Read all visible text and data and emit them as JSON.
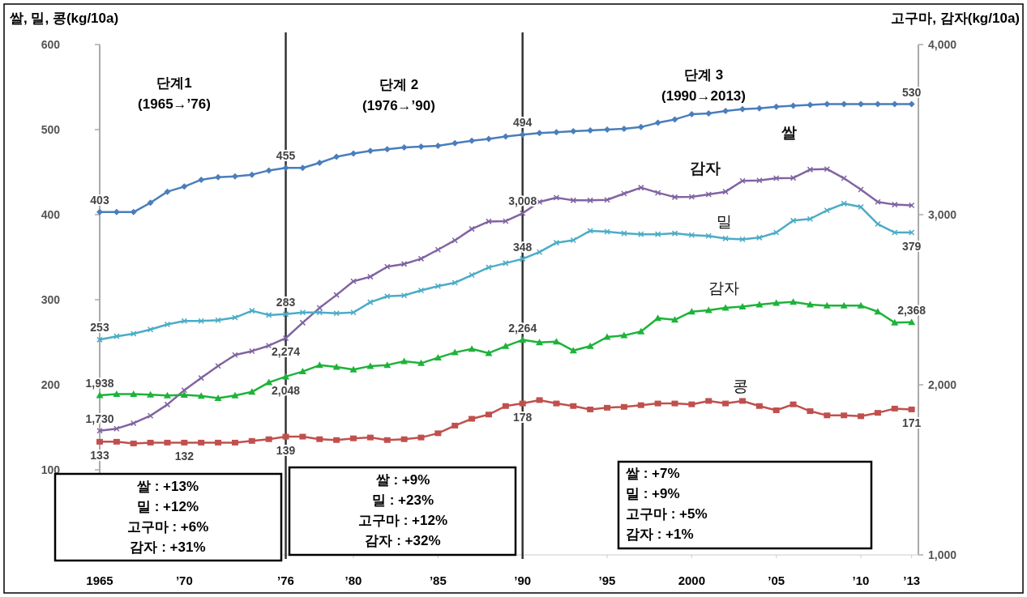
{
  "chart_data": {
    "type": "line",
    "ylabel": "쌀, 밀, 콩(kg/10a)",
    "y2label": "고구마, 감자(kg/10a)",
    "x": [
      1965,
      1966,
      1967,
      1968,
      1969,
      1970,
      1971,
      1972,
      1973,
      1974,
      1975,
      1976,
      1977,
      1978,
      1979,
      1980,
      1981,
      1982,
      1983,
      1984,
      1985,
      1986,
      1987,
      1988,
      1989,
      1990,
      1991,
      1992,
      1993,
      1994,
      1995,
      1996,
      1997,
      1998,
      1999,
      2000,
      2001,
      2002,
      2003,
      2004,
      2005,
      2006,
      2007,
      2008,
      2009,
      2010,
      2011,
      2012,
      2013
    ],
    "xlim": [
      1965,
      2013.4
    ],
    "xticks": [
      1965,
      {
        "value": 1970,
        "label": "’70"
      },
      {
        "value": 1976,
        "label": "’76"
      },
      {
        "value": 1980,
        "label": "’80"
      },
      {
        "value": 1985,
        "label": "’85"
      },
      {
        "value": 1990,
        "label": "’90"
      },
      {
        "value": 1995,
        "label": "’95"
      },
      2000,
      {
        "value": 2005,
        "label": "’05"
      },
      {
        "value": 2010,
        "label": "’10"
      },
      {
        "value": 2013,
        "label": "’13"
      }
    ],
    "ylim": [
      0,
      600
    ],
    "yticks": [
      100,
      200,
      300,
      400,
      500,
      600
    ],
    "y2lim": [
      1000,
      4000
    ],
    "y2ticks": [
      {
        "value": 1000,
        "label": "1,000"
      },
      {
        "value": 2000,
        "label": "2,000"
      },
      {
        "value": 3000,
        "label": "3,000"
      },
      {
        "value": 4000,
        "label": "4,000"
      }
    ],
    "series": [
      {
        "name": "쌀",
        "color": "#4a7ebb",
        "marker": "diamond",
        "values": [
          403,
          403,
          403,
          414,
          427,
          433,
          441,
          444,
          445,
          447,
          452,
          455,
          455,
          461,
          468,
          472,
          475,
          477,
          479,
          480,
          481,
          484,
          487,
          489,
          492,
          494,
          496,
          497,
          498,
          499,
          500,
          501,
          503,
          508,
          512,
          518,
          519,
          522,
          524,
          525,
          527,
          528,
          529,
          530,
          530,
          530,
          530,
          530,
          530
        ],
        "value_labels": [
          "403",
          null,
          null,
          null,
          null,
          null,
          null,
          null,
          null,
          null,
          null,
          "455",
          null,
          null,
          null,
          null,
          null,
          null,
          null,
          null,
          null,
          null,
          null,
          null,
          null,
          "494",
          null,
          null,
          null,
          null,
          null,
          null,
          null,
          null,
          null,
          null,
          null,
          null,
          null,
          null,
          null,
          null,
          null,
          null,
          null,
          null,
          null,
          null,
          "530"
        ]
      },
      {
        "name": "감자",
        "color": "#8064a2",
        "marker": "cross",
        "axis": "y2",
        "values": [
          1730,
          1742,
          1774,
          1818,
          1884,
          1968,
          2040,
          2111,
          2175,
          2198,
          2230,
          2274,
          2365,
          2452,
          2528,
          2608,
          2635,
          2694,
          2710,
          2741,
          2794,
          2849,
          2916,
          2960,
          2962,
          3008,
          3075,
          3100,
          3084,
          3084,
          3087,
          3124,
          3159,
          3129,
          3103,
          3105,
          3119,
          3135,
          3199,
          3201,
          3214,
          3216,
          3265,
          3268,
          3214,
          3148,
          3075,
          3059,
          3055
        ],
        "value_labels": [
          "1,730",
          null,
          null,
          null,
          null,
          null,
          null,
          null,
          null,
          null,
          null,
          "2,274",
          null,
          null,
          null,
          null,
          null,
          null,
          null,
          null,
          null,
          null,
          null,
          null,
          null,
          "3,008",
          null,
          null,
          null,
          null,
          null,
          null,
          null,
          null,
          null,
          null,
          null,
          null,
          null,
          null,
          null,
          null,
          null,
          null,
          null,
          null,
          null,
          null,
          null
        ]
      },
      {
        "name": "밀",
        "color": "#4bacc6",
        "marker": "cross",
        "values": [
          253,
          257,
          260,
          265,
          271,
          275,
          275,
          276,
          279,
          287,
          282,
          283,
          285,
          285,
          284,
          285,
          297,
          304,
          305,
          311,
          316,
          320,
          329,
          338,
          343,
          348,
          356,
          367,
          370,
          381,
          380,
          378,
          377,
          377,
          378,
          376,
          375,
          372,
          371,
          373,
          379,
          393,
          395,
          405,
          413,
          409,
          389,
          379,
          379
        ],
        "value_labels": [
          "253",
          null,
          null,
          null,
          null,
          null,
          null,
          null,
          null,
          null,
          null,
          "283",
          null,
          null,
          null,
          null,
          null,
          null,
          null,
          null,
          null,
          null,
          null,
          null,
          null,
          "348",
          null,
          null,
          null,
          null,
          null,
          null,
          null,
          null,
          null,
          null,
          null,
          null,
          null,
          null,
          null,
          null,
          null,
          null,
          null,
          null,
          null,
          null,
          "379"
        ]
      },
      {
        "name": "감자",
        "color": "#1db33a",
        "marker": "triangle",
        "axis": "y2",
        "values": [
          1938,
          1945,
          1945,
          1942,
          1937,
          1940,
          1935,
          1921,
          1937,
          1958,
          2014,
          2048,
          2078,
          2115,
          2105,
          2089,
          2110,
          2116,
          2138,
          2127,
          2159,
          2190,
          2211,
          2186,
          2227,
          2264,
          2249,
          2254,
          2201,
          2227,
          2281,
          2290,
          2313,
          2392,
          2382,
          2430,
          2438,
          2452,
          2460,
          2471,
          2481,
          2487,
          2471,
          2465,
          2465,
          2465,
          2430,
          2365,
          2368
        ],
        "value_labels": [
          "1,938",
          null,
          null,
          null,
          null,
          null,
          null,
          null,
          null,
          null,
          null,
          "2,048",
          null,
          null,
          null,
          null,
          null,
          null,
          null,
          null,
          null,
          null,
          null,
          null,
          null,
          "2,264",
          null,
          null,
          null,
          null,
          null,
          null,
          null,
          null,
          null,
          null,
          null,
          null,
          null,
          null,
          null,
          null,
          null,
          null,
          null,
          null,
          null,
          null,
          "2,368"
        ]
      },
      {
        "name": "콩",
        "color": "#c0504d",
        "marker": "square",
        "values": [
          133,
          133,
          131,
          132,
          132,
          132,
          132,
          132,
          132,
          134,
          136,
          139,
          139,
          136,
          135,
          137,
          138,
          135,
          136,
          138,
          143,
          152,
          160,
          165,
          175,
          178,
          182,
          178,
          175,
          171,
          173,
          174,
          176,
          178,
          178,
          177,
          181,
          178,
          181,
          175,
          170,
          177,
          169,
          164,
          164,
          163,
          167,
          172,
          171
        ],
        "value_labels": [
          "133",
          null,
          null,
          null,
          null,
          "132",
          null,
          null,
          null,
          null,
          null,
          "139",
          null,
          null,
          null,
          null,
          null,
          null,
          null,
          null,
          null,
          null,
          null,
          null,
          null,
          "178",
          null,
          null,
          null,
          null,
          null,
          null,
          null,
          null,
          null,
          null,
          null,
          null,
          null,
          null,
          null,
          null,
          null,
          null,
          null,
          null,
          null,
          null,
          "171"
        ]
      }
    ],
    "ref_lines": [
      {
        "axis": "x",
        "value": 1976,
        "color": "#333333"
      },
      {
        "axis": "x",
        "value": 1990,
        "color": "#333333"
      }
    ],
    "annotations": [
      "단계1\n(1965→’76)",
      "단계 2\n(1976→’90)",
      "단계 3\n(1990→2013)",
      "쌀 : +13%\n밀 : +12%\n고구마 : +6%\n감자 : +31%",
      "쌀 : +9%\n밀 : +23%\n고구마 : +12%\n감자 : +32%",
      "쌀 : +7%\n밀 : +9%\n고구마 : +5%\n감자 : +1%"
    ]
  }
}
